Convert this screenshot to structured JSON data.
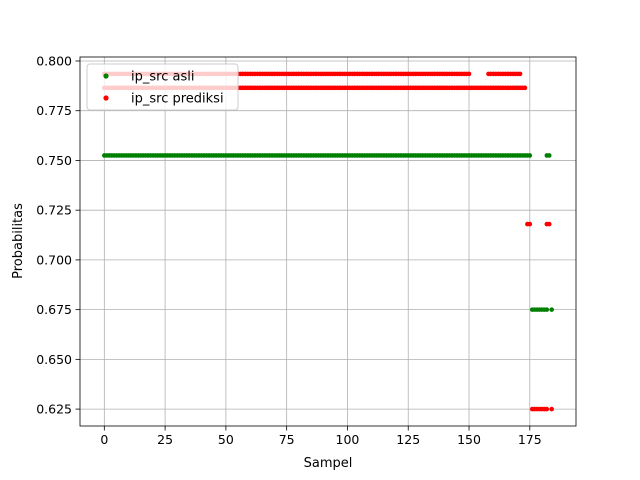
{
  "chart_data": {
    "type": "scatter",
    "title": "",
    "xlabel": "Sampel",
    "ylabel": "Probabilitas",
    "xlim": [
      -10,
      194
    ],
    "ylim": [
      0.6165,
      0.802
    ],
    "xticks": [
      0,
      25,
      50,
      75,
      100,
      125,
      150,
      175
    ],
    "yticks": [
      0.625,
      0.65,
      0.675,
      0.7,
      0.725,
      0.75,
      0.775,
      0.8
    ],
    "ytick_labels": [
      "0.625",
      "0.650",
      "0.675",
      "0.700",
      "0.725",
      "0.750",
      "0.775",
      "0.800"
    ],
    "grid": true,
    "legend": "top-left",
    "series": [
      {
        "name": "ip_src asli",
        "color": "#008000",
        "runs": [
          {
            "x_from": 0,
            "x_to": 175,
            "y": 0.7525
          },
          {
            "x_from": 182,
            "x_to": 183,
            "y": 0.7525
          },
          {
            "x_from": 176,
            "x_to": 182,
            "y": 0.675
          },
          {
            "x_from": 184,
            "x_to": 184,
            "y": 0.675
          }
        ]
      },
      {
        "name": "ip_src prediksi",
        "color": "#ff0000",
        "runs": [
          {
            "x_from": 0,
            "x_to": 171,
            "y": 0.7935,
            "skip": [
              151,
              152,
              153,
              154,
              155,
              156,
              157
            ]
          },
          {
            "x_from": 0,
            "x_to": 173,
            "y": 0.7865
          },
          {
            "x_from": 174,
            "x_to": 175,
            "y": 0.718
          },
          {
            "x_from": 182,
            "x_to": 183,
            "y": 0.718
          },
          {
            "x_from": 176,
            "x_to": 182,
            "y": 0.625
          },
          {
            "x_from": 184,
            "x_to": 184,
            "y": 0.625
          }
        ]
      }
    ]
  }
}
